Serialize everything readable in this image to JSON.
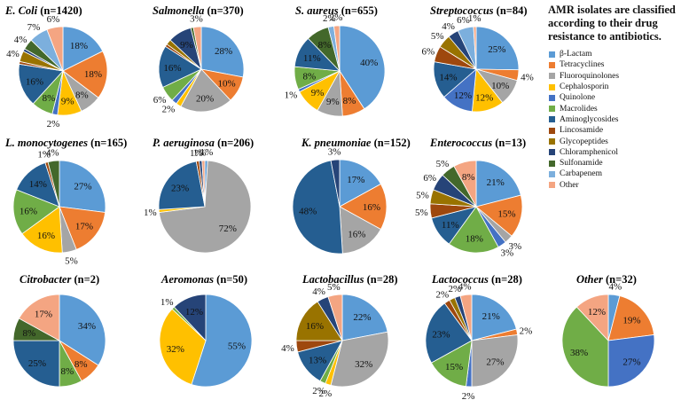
{
  "legend": {
    "title": "AMR isolates are classified according to their drug resistance to antibiotics.",
    "items": [
      {
        "name": "β-Lactam",
        "color": "#5b9bd5"
      },
      {
        "name": "Tetracyclines",
        "color": "#ed7d31"
      },
      {
        "name": "Fluoroquinolones",
        "color": "#a5a5a5"
      },
      {
        "name": "Cephalosporin",
        "color": "#ffc000"
      },
      {
        "name": "Quinolone",
        "color": "#4472c4"
      },
      {
        "name": "Macrolides",
        "color": "#70ad47"
      },
      {
        "name": "Aminoglycosides",
        "color": "#255e91"
      },
      {
        "name": "Lincosamide",
        "color": "#9e480e"
      },
      {
        "name": "Glycopeptides",
        "color": "#997300"
      },
      {
        "name": "Chloramphenicol",
        "color": "#264478"
      },
      {
        "name": "Sulfonamide",
        "color": "#43682b"
      },
      {
        "name": "Carbapenem",
        "color": "#7cafdd"
      },
      {
        "name": "Other",
        "color": "#f4a582"
      }
    ]
  },
  "chart_data": [
    {
      "type": "pie",
      "title_name": "E. Coli",
      "title_n": " (n=1420)",
      "slices": [
        18,
        18,
        8,
        9,
        2,
        8,
        16,
        1,
        4,
        1,
        4,
        7,
        6
      ],
      "labels": [
        "18%",
        "18%",
        "8%",
        "9%",
        "2%",
        "8%",
        "16%",
        "",
        "4%",
        "",
        "4%",
        "7%",
        "6%"
      ]
    },
    {
      "type": "pie",
      "title_name": "Salmonella",
      "title_n": " (n=370)",
      "slices": [
        28,
        10,
        20,
        2,
        2,
        6,
        16,
        1,
        2,
        9,
        1,
        0,
        3
      ],
      "labels": [
        "28%",
        "10%",
        "20%",
        "",
        "2%",
        "6%",
        "16%",
        "",
        "",
        "9%",
        "",
        "",
        "3%"
      ]
    },
    {
      "type": "pie",
      "title_name": "S. aureus",
      "title_n": " (n=655)",
      "slices": [
        40,
        8,
        9,
        9,
        1,
        8,
        11,
        0,
        0,
        0,
        8,
        2,
        2
      ],
      "labels": [
        "40%",
        "8%",
        "9%",
        "9%",
        "1%",
        "8%",
        "11%",
        "",
        "",
        "",
        "8%",
        "2%",
        "2%"
      ]
    },
    {
      "type": "pie",
      "title_name": "Streptococcus",
      "title_n": " (n=84)",
      "slices": [
        25,
        4,
        10,
        12,
        12,
        0,
        14,
        6,
        5,
        4,
        0,
        6,
        1
      ],
      "labels": [
        "25%",
        "4%",
        "10%",
        "12%",
        "12%",
        "",
        "14%",
        "6%",
        "5%",
        "4%",
        "",
        "6%",
        "1%"
      ]
    },
    {
      "type": "pie",
      "title_name": "L. monocytogenes",
      "title_n": " (n=165)",
      "slices": [
        27,
        17,
        5,
        16,
        0,
        16,
        14,
        1,
        0,
        0,
        4,
        0,
        0
      ],
      "labels": [
        "27%",
        "17%",
        "5%",
        "16%",
        "",
        "16%",
        "14%",
        "1%",
        "",
        "",
        "4%",
        "",
        ""
      ]
    },
    {
      "type": "pie",
      "title_name": "P. aeruginosa",
      "title_n": " (n=206)",
      "slices": [
        1,
        0,
        72,
        1,
        0,
        0,
        23,
        1,
        0,
        1,
        0,
        0,
        1
      ],
      "labels": [
        "1%",
        "",
        "72%",
        "1%",
        "",
        "",
        "23%",
        "1%",
        "",
        "1%",
        "",
        "",
        ""
      ]
    },
    {
      "type": "pie",
      "title_name": "K. pneumoniae",
      "title_n": " (n=152)",
      "slices": [
        17,
        16,
        16,
        0,
        0,
        0,
        48,
        0,
        0,
        3,
        0,
        0,
        0
      ],
      "labels": [
        "17%",
        "16%",
        "16%",
        "",
        "",
        "",
        "48%",
        "",
        "",
        "3%",
        "",
        "",
        ""
      ]
    },
    {
      "type": "pie",
      "title_name": "Enterococcus",
      "title_n": " (n=13)",
      "slices": [
        21,
        15,
        3,
        0,
        3,
        18,
        11,
        5,
        5,
        6,
        5,
        0,
        8
      ],
      "labels": [
        "21%",
        "15%",
        "3%",
        "",
        "3%",
        "18%",
        "11%",
        "5%",
        "5%",
        "6%",
        "5%",
        "",
        "8%"
      ]
    },
    {
      "type": "pie",
      "title_name": "Citrobacter",
      "title_n": " (n=2)",
      "slices": [
        34,
        8,
        0,
        0,
        0,
        8,
        25,
        0,
        0,
        0,
        8,
        0,
        17
      ],
      "labels": [
        "34%",
        "8%",
        "",
        "",
        "",
        "8%",
        "25%",
        "",
        "",
        "",
        "8%",
        "",
        "17%"
      ]
    },
    {
      "type": "pie",
      "title_name": "Aeromonas",
      "title_n": " (n=50)",
      "slices": [
        55,
        0,
        0,
        32,
        0,
        1,
        0,
        0,
        0,
        12,
        0,
        0,
        0
      ],
      "labels": [
        "55%",
        "",
        "",
        "32%",
        "",
        "1%",
        "",
        "",
        "",
        "12%",
        "",
        "",
        ""
      ]
    },
    {
      "type": "pie",
      "title_name": "Lactobacillus",
      "title_n": " (n=28)",
      "slices": [
        22,
        0,
        32,
        2,
        0,
        2,
        13,
        4,
        16,
        4,
        0,
        0,
        5
      ],
      "labels": [
        "22%",
        "",
        "32%",
        "2%",
        "",
        "2%",
        "13%",
        "4%",
        "16%",
        "4%",
        "",
        "",
        "5%"
      ]
    },
    {
      "type": "pie",
      "title_name": "Lactococcus",
      "title_n": " (n=28)",
      "slices": [
        21,
        2,
        27,
        0,
        2,
        15,
        23,
        2,
        2,
        2,
        0,
        0,
        4
      ],
      "labels": [
        "21%",
        "2%",
        "27%",
        "",
        "2%",
        "15%",
        "23%",
        "2%",
        "",
        "2%",
        "",
        "",
        "4%"
      ]
    },
    {
      "type": "pie",
      "title_name": "Other",
      "title_n": " (n=32)",
      "slices": [
        4,
        19,
        0,
        0,
        27,
        38,
        0,
        0,
        0,
        0,
        0,
        0,
        12
      ],
      "labels": [
        "4%",
        "19%",
        "",
        "",
        "27%",
        "38%",
        "",
        "",
        "",
        "",
        "",
        "",
        "12%"
      ]
    }
  ]
}
